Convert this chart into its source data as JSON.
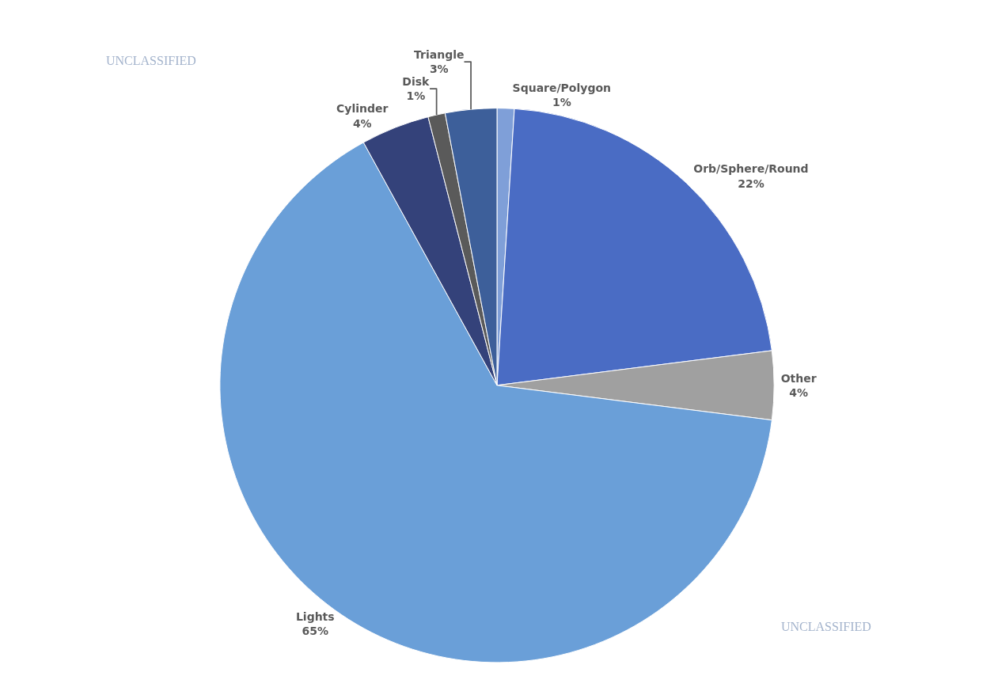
{
  "chart_data": {
    "type": "pie",
    "categories": [
      "Square/Polygon",
      "Orb/Sphere/Round",
      "Other",
      "Lights",
      "Cylinder",
      "Disk",
      "Triangle"
    ],
    "values": [
      1,
      22,
      4,
      65,
      4,
      1,
      3
    ],
    "value_labels": [
      "1%",
      "22%",
      "4%",
      "65%",
      "4%",
      "1%",
      "3%"
    ],
    "colors": [
      "#7f9fd8",
      "#4a6cc4",
      "#a0a0a0",
      "#6a9fd8",
      "#34427a",
      "#5a5a5a",
      "#3d5f9a"
    ],
    "annotations": [
      "UNCLASSIFIED",
      "UNCLASSIFIED"
    ]
  }
}
